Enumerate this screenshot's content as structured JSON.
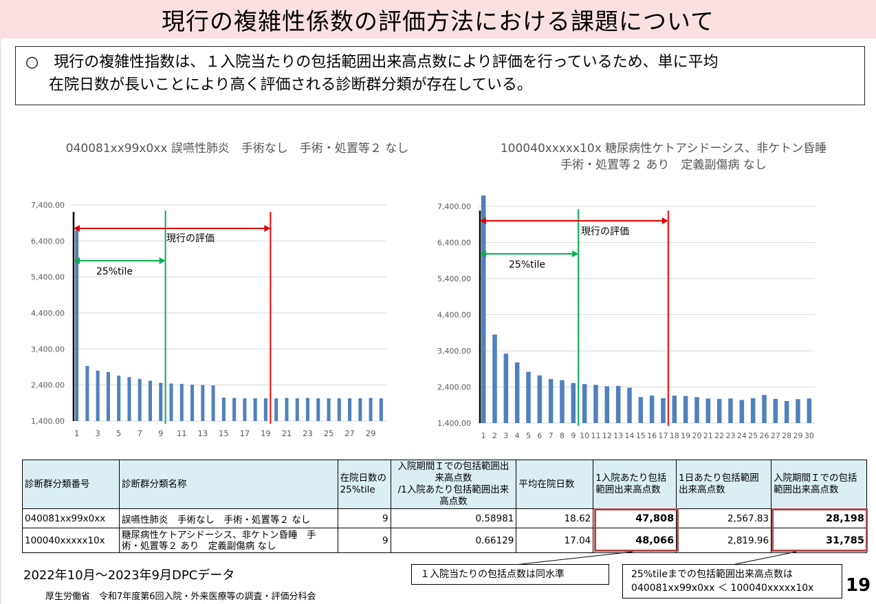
{
  "page": {
    "title": "現行の複雑性係数の評価方法における課題について",
    "intro_line1": "○　現行の複雑性指数は、１入院当たりの包括範囲出来高点数により評価を行っているため、単に平均",
    "intro_line2": "在院日数が長いことにより高く評価される診断群分類が存在している。",
    "period": "2022年10月～2023年9月DPCデータ",
    "footer": "厚生労働省　令和7年度第6回入院・外来医療等の調査・評価分科会",
    "page_number": "19"
  },
  "chart_data": [
    {
      "type": "bar",
      "title": "040081xx99x0xx 誤嚥性肺炎　手術なし　手術・処置等２ なし",
      "x": [
        1,
        2,
        3,
        4,
        5,
        6,
        7,
        8,
        9,
        10,
        11,
        12,
        13,
        14,
        15,
        16,
        17,
        18,
        19,
        20,
        21,
        22,
        23,
        24,
        25,
        26,
        27,
        28,
        29,
        30
      ],
      "x_tick_labels": [
        "1",
        "3",
        "5",
        "7",
        "9",
        "11",
        "13",
        "15",
        "17",
        "19",
        "21",
        "23",
        "25",
        "27",
        "29"
      ],
      "values": [
        6700,
        2930,
        2800,
        2760,
        2660,
        2620,
        2570,
        2520,
        2460,
        2440,
        2430,
        2410,
        2400,
        2390,
        2050,
        2040,
        2030,
        2030,
        2030,
        2030,
        2040,
        2030,
        2040,
        2030,
        2030,
        2030,
        2030,
        2030,
        2040,
        2030
      ],
      "ylim": [
        1400,
        7400
      ],
      "y_ticks": [
        "1,400.00",
        "2,400.00",
        "3,400.00",
        "4,400.00",
        "5,400.00",
        "6,400.00",
        "7,400.00"
      ],
      "color": "#4f81bd",
      "grid": true,
      "annotations": {
        "current_label": "現行の評価",
        "current_end_day": 19,
        "tile_label": "25%tile",
        "tile_day": 9
      }
    },
    {
      "type": "bar",
      "title_line1": "100040xxxxx10x 糖尿病性ケトアシドーシス、非ケトン昏睡",
      "title_line2": "手術・処置等２ あり　定義副傷病 なし",
      "x": [
        1,
        2,
        3,
        4,
        5,
        6,
        7,
        8,
        9,
        10,
        11,
        12,
        13,
        14,
        15,
        16,
        17,
        18,
        19,
        20,
        21,
        22,
        23,
        24,
        25,
        26,
        27,
        28,
        29,
        30
      ],
      "x_tick_labels": [
        "1",
        "2",
        "3",
        "4",
        "5",
        "6",
        "7",
        "8",
        "9",
        "10",
        "11",
        "12",
        "13",
        "14",
        "15",
        "16",
        "17",
        "18",
        "19",
        "20",
        "21",
        "22",
        "23",
        "24",
        "25",
        "26",
        "27",
        "28",
        "29",
        "30"
      ],
      "values": [
        7700,
        3850,
        3320,
        3080,
        2820,
        2720,
        2620,
        2590,
        2510,
        2480,
        2460,
        2420,
        2430,
        2380,
        2120,
        2160,
        2090,
        2160,
        2150,
        2120,
        2080,
        2070,
        2080,
        2040,
        2090,
        2180,
        2070,
        2010,
        2060,
        2080
      ],
      "ylim": [
        1400,
        7400
      ],
      "y_ticks": [
        "1,400.00",
        "2,400.00",
        "3,400.00",
        "4,400.00",
        "5,400.00",
        "6,400.00",
        "7,400.00"
      ],
      "color": "#4f81bd",
      "grid": true,
      "annotations": {
        "current_label": "現行の評価",
        "current_end_day": 17,
        "tile_label": "25%tile",
        "tile_day": 9
      }
    }
  ],
  "table": {
    "headers": [
      "診断群分類番号",
      "診断群分類名称",
      "在院日数の25%tile",
      "入院期間Ｉでの包括範囲出来高点数/1入院あたり包括範囲出来高点数",
      "平均在院日数",
      "1入院あたり包括範囲出来高点数",
      "1日あたり包括範囲出来高点数",
      "入院期間Ｉでの包括範囲出来高点数"
    ],
    "header_lines": {
      "col2_l1": "在院日数の",
      "col2_l2": "25%tile",
      "col3_l1": "入院期間Ｉでの包括範囲出",
      "col3_l2": "来高点数",
      "col3_l3": "/1入院あたり包括範囲出来",
      "col3_l4": "高点数",
      "col5_l1": "1入院あたり包括",
      "col5_l2": "範囲出来高点数",
      "col6_l1": "1日あたり包括範囲",
      "col6_l2": "出来高点数",
      "col7_l1": "入院期間Ｉでの包括",
      "col7_l2": "範囲出来高点数"
    },
    "rows": [
      {
        "code": "040081xx99x0xx",
        "name": "誤嚥性肺炎　手術なし　手術・処置等２ なし",
        "name_l2": "",
        "tile25": "9",
        "ratio": "0.58981",
        "avg_days": "18.62",
        "per_admission": "47,808",
        "per_day": "2,567.83",
        "period1": "28,198"
      },
      {
        "code": "100040xxxxx10x",
        "name": "糖尿病性ケトアシドーシス、非ケトン昏睡　手",
        "name_l2": "術・処置等２ あり　定義副傷病 なし",
        "tile25": "9",
        "ratio": "0.66129",
        "avg_days": "17.04",
        "per_admission": "48,066",
        "per_day": "2,819.96",
        "period1": "31,785"
      }
    ]
  },
  "callouts": {
    "left": "１入院当たりの包括点数は同水準",
    "right_l1": "25%tileまでの包括範囲出来高点数は",
    "right_l2": "040081xx99x0xx ＜ 100040xxxxx10x"
  }
}
